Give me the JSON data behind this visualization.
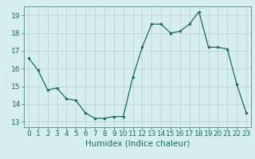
{
  "x": [
    0,
    1,
    2,
    3,
    4,
    5,
    6,
    7,
    8,
    9,
    10,
    11,
    12,
    13,
    14,
    15,
    16,
    17,
    18,
    19,
    20,
    21,
    22,
    23
  ],
  "y": [
    16.6,
    15.9,
    14.8,
    14.9,
    14.3,
    14.2,
    13.5,
    13.2,
    13.2,
    13.3,
    13.3,
    15.5,
    17.2,
    18.5,
    18.5,
    18.0,
    18.1,
    18.5,
    19.2,
    17.2,
    17.2,
    17.1,
    15.1,
    13.5
  ],
  "xlabel": "Humidex (Indice chaleur)",
  "xlim_min": -0.5,
  "xlim_max": 23.5,
  "ylim_min": 12.7,
  "ylim_max": 19.5,
  "yticks": [
    13,
    14,
    15,
    16,
    17,
    18,
    19
  ],
  "xticks": [
    0,
    1,
    2,
    3,
    4,
    5,
    6,
    7,
    8,
    9,
    10,
    11,
    12,
    13,
    14,
    15,
    16,
    17,
    18,
    19,
    20,
    21,
    22,
    23
  ],
  "line_color": "#1a6b5a",
  "marker_color": "#1a6b5a",
  "bg_color": "#d6eeee",
  "grid_color": "#c0d8d8",
  "spine_color": "#5a8a7a",
  "tick_label_color": "#1a6b5a",
  "xlabel_color": "#1a6b5a",
  "font_size_ticks": 6.5,
  "font_size_xlabel": 7.5
}
